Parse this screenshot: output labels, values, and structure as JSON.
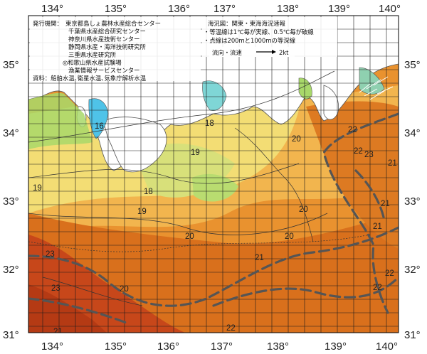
{
  "axes": {
    "lon_ticks": [
      "134°",
      "135°",
      "136°",
      "137°",
      "138°",
      "139°",
      "140°"
    ],
    "lat_ticks": [
      "35°",
      "34°",
      "33°",
      "32°",
      "31°"
    ]
  },
  "info_left": [
    "発行機関：　東京都島しょ農林水産総合センター",
    "千葉県水産総合研究センター",
    "神奈川県水産技術センター",
    "静岡県水産・海洋技術研究所",
    "三重県水産研究所",
    "◎和歌山県水産試験場",
    "漁業情報サービスセンター",
    "資料：船舶水温､衛星水温､気象庁解析水温"
  ],
  "info_right": [
    "海況図：関東・東海海況速報",
    "・等温線は1℃毎が実線、0.5℃毎が破線",
    "・点線は200mと1000mの等深線"
  ],
  "legend": {
    "label": "流向・流速",
    "speed": "2kt"
  },
  "isotherm_labels": [
    "16",
    "18",
    "19",
    "18",
    "19",
    "19",
    "20",
    "20",
    "20",
    "20",
    "21",
    "23",
    "23",
    "20",
    "21",
    "22",
    "22",
    "21",
    "21",
    "21",
    "22",
    "22",
    "22",
    "23"
  ],
  "colors": {
    "land": "#ffffff",
    "cool": "#7fd6d6",
    "cyan": "#4fc3e8",
    "green": "#a8d86a",
    "yellow": "#f3dd74",
    "orange_light": "#f2b54e",
    "orange": "#e9922f",
    "orange_deep": "#d9701c",
    "red": "#c7471a",
    "stream": "#555555"
  }
}
